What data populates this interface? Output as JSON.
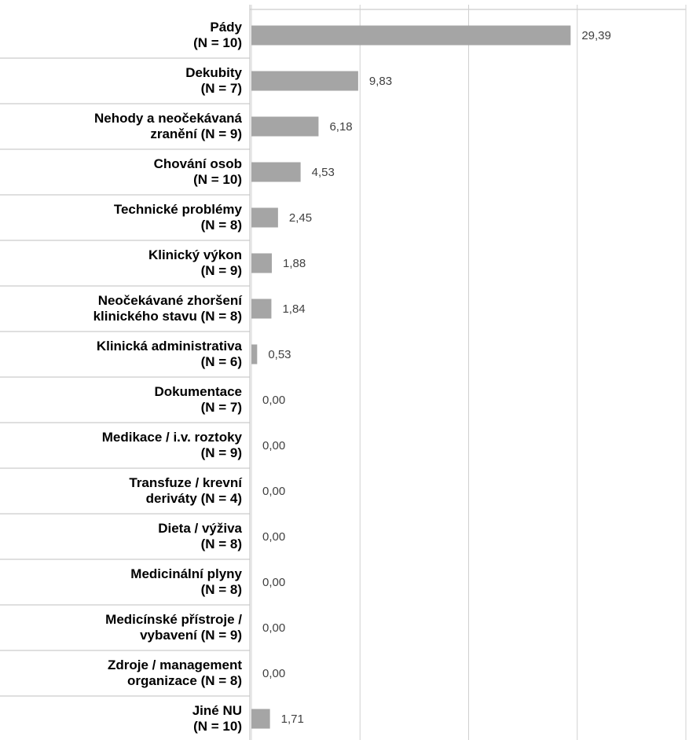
{
  "chart_data": {
    "type": "barh",
    "categories": [
      "Pády\n(N = 10)",
      "Dekubity\n(N = 7)",
      "Nehody a neočekávaná\nzranění (N = 9)",
      "Chování osob\n(N = 10)",
      "Technické problémy\n(N = 8)",
      "Klinický výkon\n(N = 9)",
      "Neočekávané zhoršení\nklinického stavu (N = 8)",
      "Klinická administrativa\n(N = 6)",
      "Dokumentace\n(N = 7)",
      "Medikace / i.v. roztoky\n(N = 9)",
      "Transfuze / krevní\nderiváty (N = 4)",
      "Dieta / výživa\n(N = 8)",
      "Medicinální plyny\n(N = 8)",
      "Medicínské přístroje /\nvybavení (N = 9)",
      "Zdroje / management\norganizace (N = 8)",
      "Jiné NU\n(N = 10)"
    ],
    "values": [
      29.39,
      9.83,
      6.18,
      4.53,
      2.45,
      1.88,
      1.84,
      0.53,
      0,
      0,
      0,
      0,
      0,
      0,
      0,
      1.71
    ],
    "value_labels": [
      "29,39",
      "9,83",
      "6,18",
      "4,53",
      "2,45",
      "1,88",
      "1,84",
      "0,53",
      "0,00",
      "0,00",
      "0,00",
      "0,00",
      "0,00",
      "0,00",
      "0,00",
      "1,71"
    ],
    "color": "#a5a5a5",
    "xlim": [
      0,
      40
    ],
    "xticks": [
      0,
      10,
      20,
      30,
      40
    ],
    "grid": true
  }
}
